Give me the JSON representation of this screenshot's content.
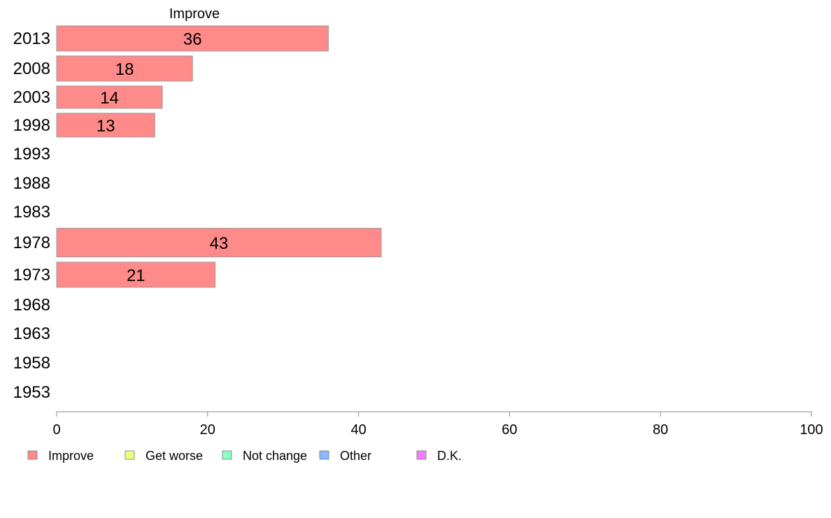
{
  "chart_data": {
    "type": "bar",
    "orientation": "horizontal",
    "title": "Improve",
    "categories": [
      "2013",
      "2008",
      "2003",
      "1998",
      "1993",
      "1988",
      "1983",
      "1978",
      "1973",
      "1968",
      "1963",
      "1958",
      "1953"
    ],
    "series": [
      {
        "name": "Improve",
        "values": [
          36,
          18,
          14,
          13,
          null,
          null,
          null,
          43,
          21,
          null,
          null,
          null,
          null
        ]
      }
    ],
    "data_labels": [
      "36",
      "18",
      "14",
      "13",
      "",
      "",
      "",
      "43",
      "21",
      "",
      "",
      "",
      ""
    ],
    "xlim": [
      0,
      100
    ],
    "xticks": [
      0,
      20,
      40,
      60,
      80,
      100
    ],
    "xtick_labels": [
      "0",
      "20",
      "40",
      "60",
      "80",
      "100"
    ],
    "xlabel": "",
    "ylabel": "",
    "grid": false,
    "legend": {
      "placement": "bottom-left",
      "entries": [
        {
          "label": "Improve",
          "color": "#ff8a8a"
        },
        {
          "label": "Get worse",
          "color": "#eeff80"
        },
        {
          "label": "Not change",
          "color": "#8affc0"
        },
        {
          "label": "Other",
          "color": "#8ab8ff"
        },
        {
          "label": "D.K.",
          "color": "#f080ff"
        }
      ]
    },
    "colors": {
      "bar_fill": "#ff8a8a",
      "bar_stroke": "#999999",
      "axis": "#888888"
    }
  }
}
